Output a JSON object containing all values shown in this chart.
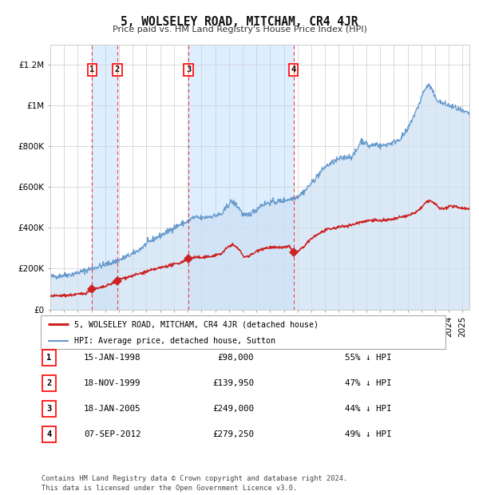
{
  "title": "5, WOLSELEY ROAD, MITCHAM, CR4 4JR",
  "subtitle": "Price paid vs. HM Land Registry's House Price Index (HPI)",
  "background_color": "#ffffff",
  "grid_color": "#cccccc",
  "hpi_line_color": "#6699cc",
  "hpi_fill_color": "#cce0f5",
  "property_color": "#cc2222",
  "shade_color": "#ddeeff",
  "transactions": [
    {
      "num": 1,
      "date_str": "15-JAN-1998",
      "year": 1998.04,
      "price": 98000,
      "pct": "55% ↓ HPI"
    },
    {
      "num": 2,
      "date_str": "18-NOV-1999",
      "year": 1999.88,
      "price": 139950,
      "pct": "47% ↓ HPI"
    },
    {
      "num": 3,
      "date_str": "18-JAN-2005",
      "year": 2005.05,
      "price": 249000,
      "pct": "44% ↓ HPI"
    },
    {
      "num": 4,
      "date_str": "07-SEP-2012",
      "year": 2012.69,
      "price": 279250,
      "pct": "49% ↓ HPI"
    }
  ],
  "legend_property": "5, WOLSELEY ROAD, MITCHAM, CR4 4JR (detached house)",
  "legend_hpi": "HPI: Average price, detached house, Sutton",
  "footer": "Contains HM Land Registry data © Crown copyright and database right 2024.\nThis data is licensed under the Open Government Licence v3.0.",
  "table_rows": [
    [
      "1",
      "15-JAN-1998",
      "£98,000",
      "55% ↓ HPI"
    ],
    [
      "2",
      "18-NOV-1999",
      "£139,950",
      "47% ↓ HPI"
    ],
    [
      "3",
      "18-JAN-2005",
      "£249,000",
      "44% ↓ HPI"
    ],
    [
      "4",
      "07-SEP-2012",
      "£279,250",
      "49% ↓ HPI"
    ]
  ],
  "ylim": [
    0,
    1300000
  ],
  "xlim_start": 1995.0,
  "xlim_end": 2025.5,
  "yticks": [
    0,
    200000,
    400000,
    600000,
    800000,
    1000000,
    1200000
  ],
  "ytick_labels": [
    "£0",
    "£200K",
    "£400K",
    "£600K",
    "£800K",
    "£1M",
    "£1.2M"
  ]
}
